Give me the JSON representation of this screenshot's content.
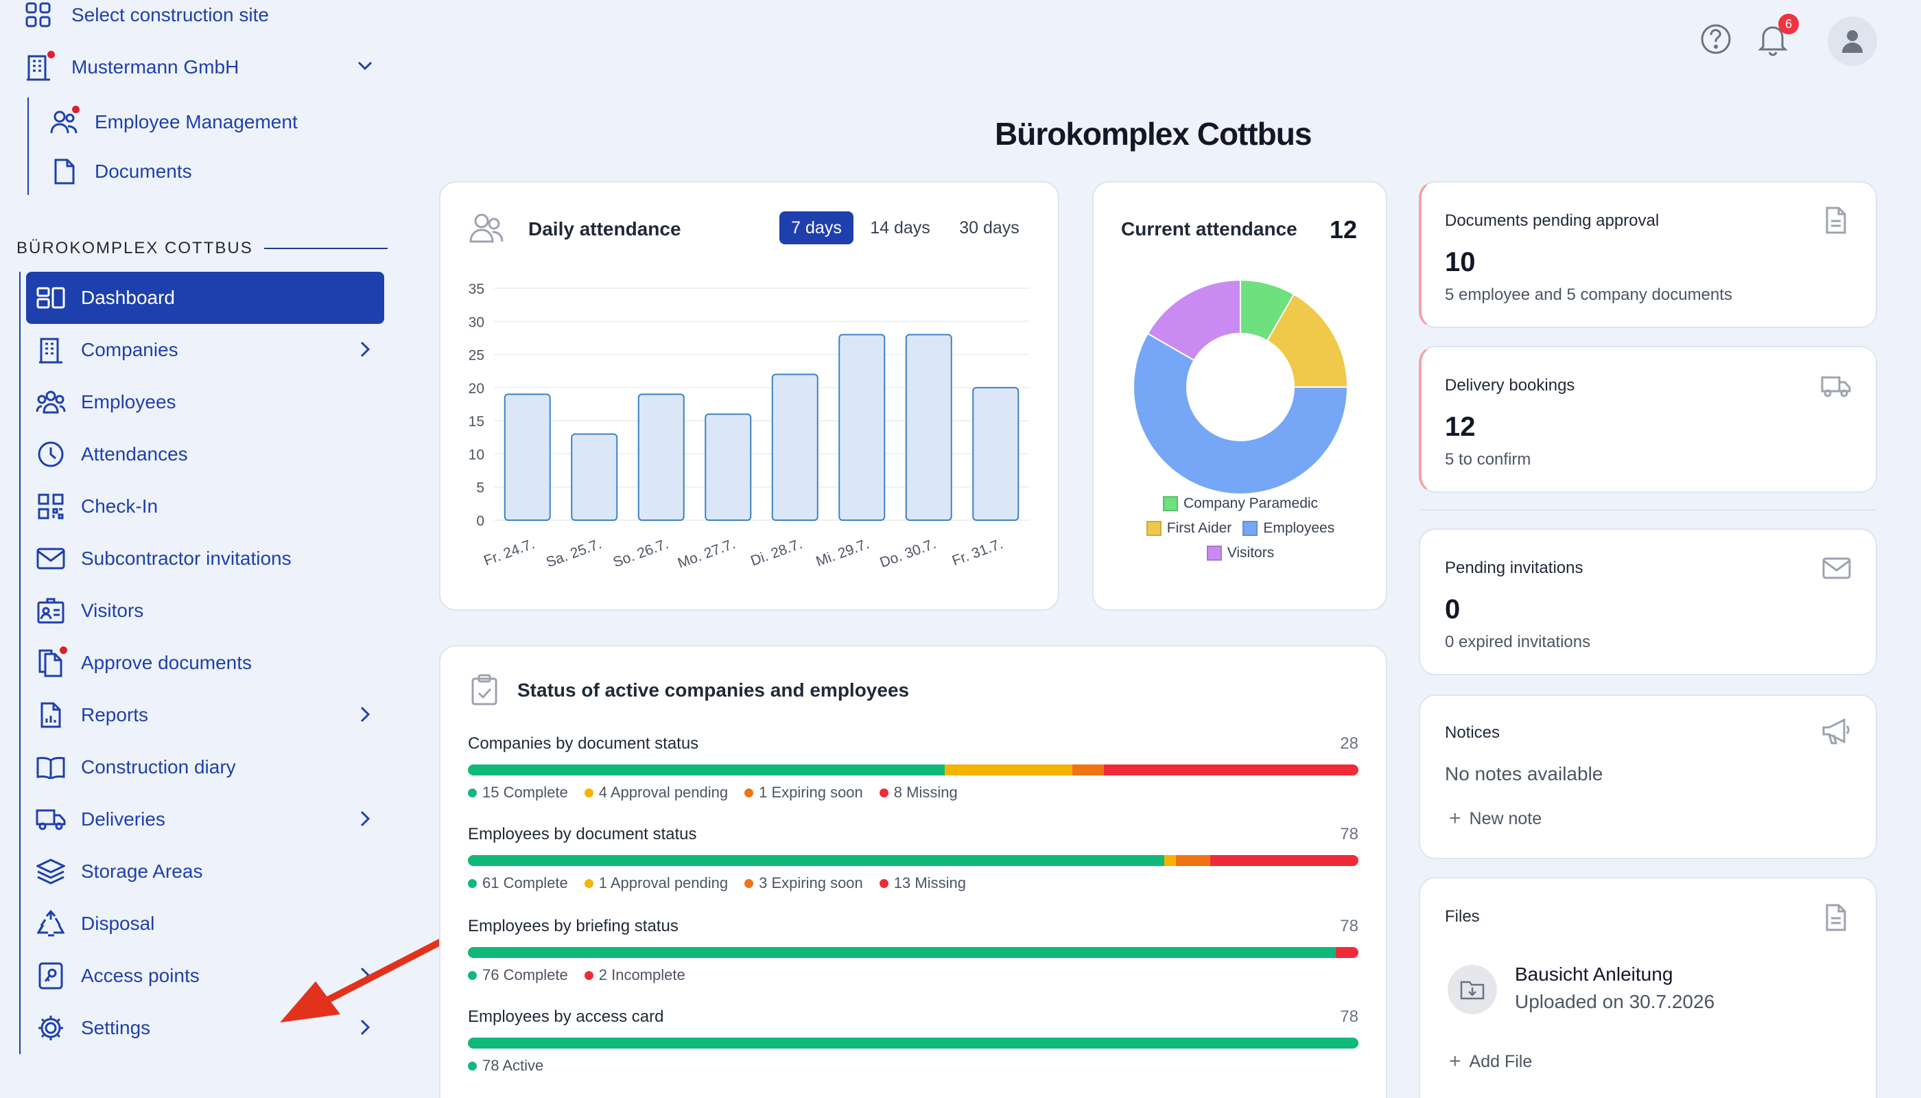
{
  "sidebar": {
    "select_site": "Select construction site",
    "company": "Mustermann GmbH",
    "company_items": [
      {
        "label": "Employee Management"
      },
      {
        "label": "Documents"
      }
    ],
    "section_title": "BÜROKOMPLEX COTTBUS",
    "nav": [
      {
        "label": "Dashboard",
        "icon": "dashboard-icon",
        "active": true
      },
      {
        "label": "Companies",
        "icon": "building-icon",
        "chevron": true
      },
      {
        "label": "Employees",
        "icon": "people-icon"
      },
      {
        "label": "Attendances",
        "icon": "clock-icon"
      },
      {
        "label": "Check-In",
        "icon": "qr-code-icon"
      },
      {
        "label": "Subcontractor invitations",
        "icon": "envelope-icon"
      },
      {
        "label": "Visitors",
        "icon": "id-card-icon"
      },
      {
        "label": "Approve documents",
        "icon": "documents-icon",
        "badge_dot": true
      },
      {
        "label": "Reports",
        "icon": "report-icon",
        "chevron": true
      },
      {
        "label": "Construction diary",
        "icon": "book-icon"
      },
      {
        "label": "Deliveries",
        "icon": "truck-icon",
        "chevron": true
      },
      {
        "label": "Storage Areas",
        "icon": "layers-icon"
      },
      {
        "label": "Disposal",
        "icon": "recycle-icon"
      },
      {
        "label": "Access points",
        "icon": "access-point-icon",
        "chevron": true
      },
      {
        "label": "Settings",
        "icon": "gear-icon",
        "chevron": true
      }
    ]
  },
  "header": {
    "page_title": "Bürokomplex Cottbus",
    "notification_count": "6"
  },
  "attendance": {
    "title": "Daily attendance",
    "tabs": [
      "7 days",
      "14 days",
      "30 days"
    ],
    "active_tab": "7 days"
  },
  "current_attendance": {
    "title": "Current attendance",
    "total": "12"
  },
  "chart_data": [
    {
      "type": "bar",
      "categories": [
        "Fr. 24.7.",
        "Sa. 25.7.",
        "So. 26.7.",
        "Mo. 27.7.",
        "Di. 28.7.",
        "Mi. 29.7.",
        "Do. 30.7.",
        "Fr. 31.7."
      ],
      "values": [
        19,
        13,
        19,
        16,
        22,
        28,
        28,
        20
      ],
      "ylim": [
        0,
        35
      ],
      "yticks": [
        0,
        5,
        10,
        15,
        20,
        25,
        30,
        35
      ],
      "grid": true,
      "color": "#dbe7f7",
      "edge": "#3b82c6"
    },
    {
      "type": "pie",
      "donut": true,
      "labels": [
        "Company Paramedic",
        "First Aider",
        "Employees",
        "Visitors"
      ],
      "values": [
        1,
        2,
        7,
        2
      ],
      "colors": [
        "#6ee07f",
        "#f0c84a",
        "#76a7f7",
        "#c98bf2"
      ],
      "legend": "bottom"
    }
  ],
  "status": {
    "title": "Status of active companies and employees",
    "rows": [
      {
        "title": "Companies by document status",
        "total": "28",
        "segments": [
          {
            "label": "15 Complete",
            "value": 15,
            "color": "#10b97a"
          },
          {
            "label": "4 Approval pending",
            "value": 4,
            "color": "#f5b400"
          },
          {
            "label": "1 Expiring soon",
            "value": 1,
            "color": "#f07316"
          },
          {
            "label": "8 Missing",
            "value": 8,
            "color": "#ef2b3a"
          }
        ]
      },
      {
        "title": "Employees by document status",
        "total": "78",
        "segments": [
          {
            "label": "61 Complete",
            "value": 61,
            "color": "#10b97a"
          },
          {
            "label": "1 Approval pending",
            "value": 1,
            "color": "#f5b400"
          },
          {
            "label": "3 Expiring soon",
            "value": 3,
            "color": "#f07316"
          },
          {
            "label": "13 Missing",
            "value": 13,
            "color": "#ef2b3a"
          }
        ]
      },
      {
        "title": "Employees by briefing status",
        "total": "78",
        "segments": [
          {
            "label": "76 Complete",
            "value": 76,
            "color": "#10b97a"
          },
          {
            "label": "2 Incomplete",
            "value": 2,
            "color": "#ef2b3a"
          }
        ]
      },
      {
        "title": "Employees by access card",
        "total": "78",
        "segments": [
          {
            "label": "78 Active",
            "value": 78,
            "color": "#10b97a"
          }
        ]
      }
    ]
  },
  "kpis": {
    "documents": {
      "title": "Documents pending approval",
      "value": "10",
      "sub": "5 employee and 5 company documents"
    },
    "deliveries": {
      "title": "Delivery bookings",
      "value": "12",
      "sub": "5 to confirm"
    },
    "invitations": {
      "title": "Pending invitations",
      "value": "0",
      "sub": "0 expired invitations"
    }
  },
  "notices": {
    "title": "Notices",
    "empty": "No notes available",
    "new_note": "New note"
  },
  "files": {
    "title": "Files",
    "file_name": "Bausicht Anleitung",
    "file_meta": "Uploaded on 30.7.2026",
    "add_file": "Add File"
  }
}
